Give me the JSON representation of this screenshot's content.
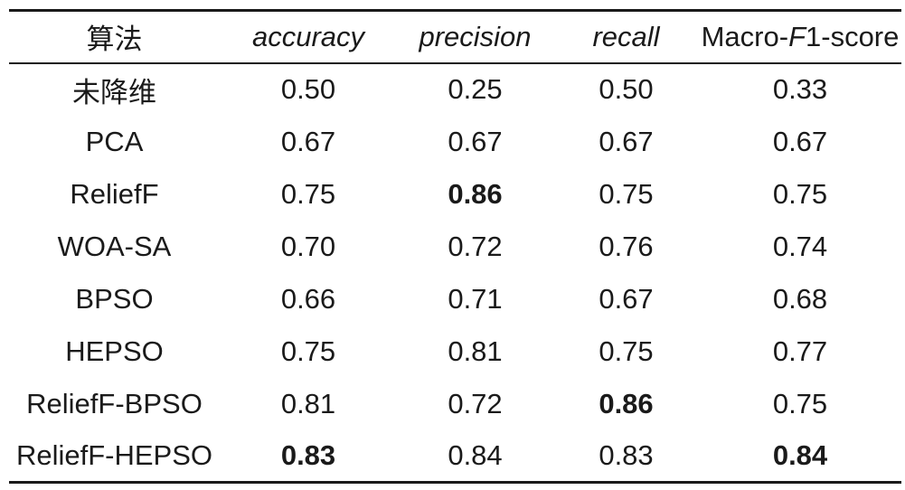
{
  "table": {
    "headers": {
      "algorithm": "算法",
      "accuracy": "accuracy",
      "precision": "precision",
      "recall": "recall",
      "macro_f1_prefix": "Macro-",
      "macro_f1_italic": "F",
      "macro_f1_suffix": "1-score"
    },
    "rows": [
      {
        "algorithm": "未降维",
        "accuracy": "0.50",
        "precision": "0.25",
        "recall": "0.50",
        "macro_f1": "0.33"
      },
      {
        "algorithm": "PCA",
        "accuracy": "0.67",
        "precision": "0.67",
        "recall": "0.67",
        "macro_f1": "0.67"
      },
      {
        "algorithm": "ReliefF",
        "accuracy": "0.75",
        "precision": "0.86",
        "recall": "0.75",
        "macro_f1": "0.75"
      },
      {
        "algorithm": "WOA-SA",
        "accuracy": "0.70",
        "precision": "0.72",
        "recall": "0.76",
        "macro_f1": "0.74"
      },
      {
        "algorithm": "BPSO",
        "accuracy": "0.66",
        "precision": "0.71",
        "recall": "0.67",
        "macro_f1": "0.68"
      },
      {
        "algorithm": "HEPSO",
        "accuracy": "0.75",
        "precision": "0.81",
        "recall": "0.75",
        "macro_f1": "0.77"
      },
      {
        "algorithm": "ReliefF-BPSO",
        "accuracy": "0.81",
        "precision": "0.72",
        "recall": "0.86",
        "macro_f1": "0.75"
      },
      {
        "algorithm": "ReliefF-HEPSO",
        "accuracy": "0.83",
        "precision": "0.84",
        "recall": "0.83",
        "macro_f1": "0.84"
      }
    ],
    "bold_cells": [
      {
        "row": 2,
        "col": "precision"
      },
      {
        "row": 6,
        "col": "recall"
      },
      {
        "row": 7,
        "col": "accuracy"
      },
      {
        "row": 7,
        "col": "macro_f1"
      }
    ]
  }
}
